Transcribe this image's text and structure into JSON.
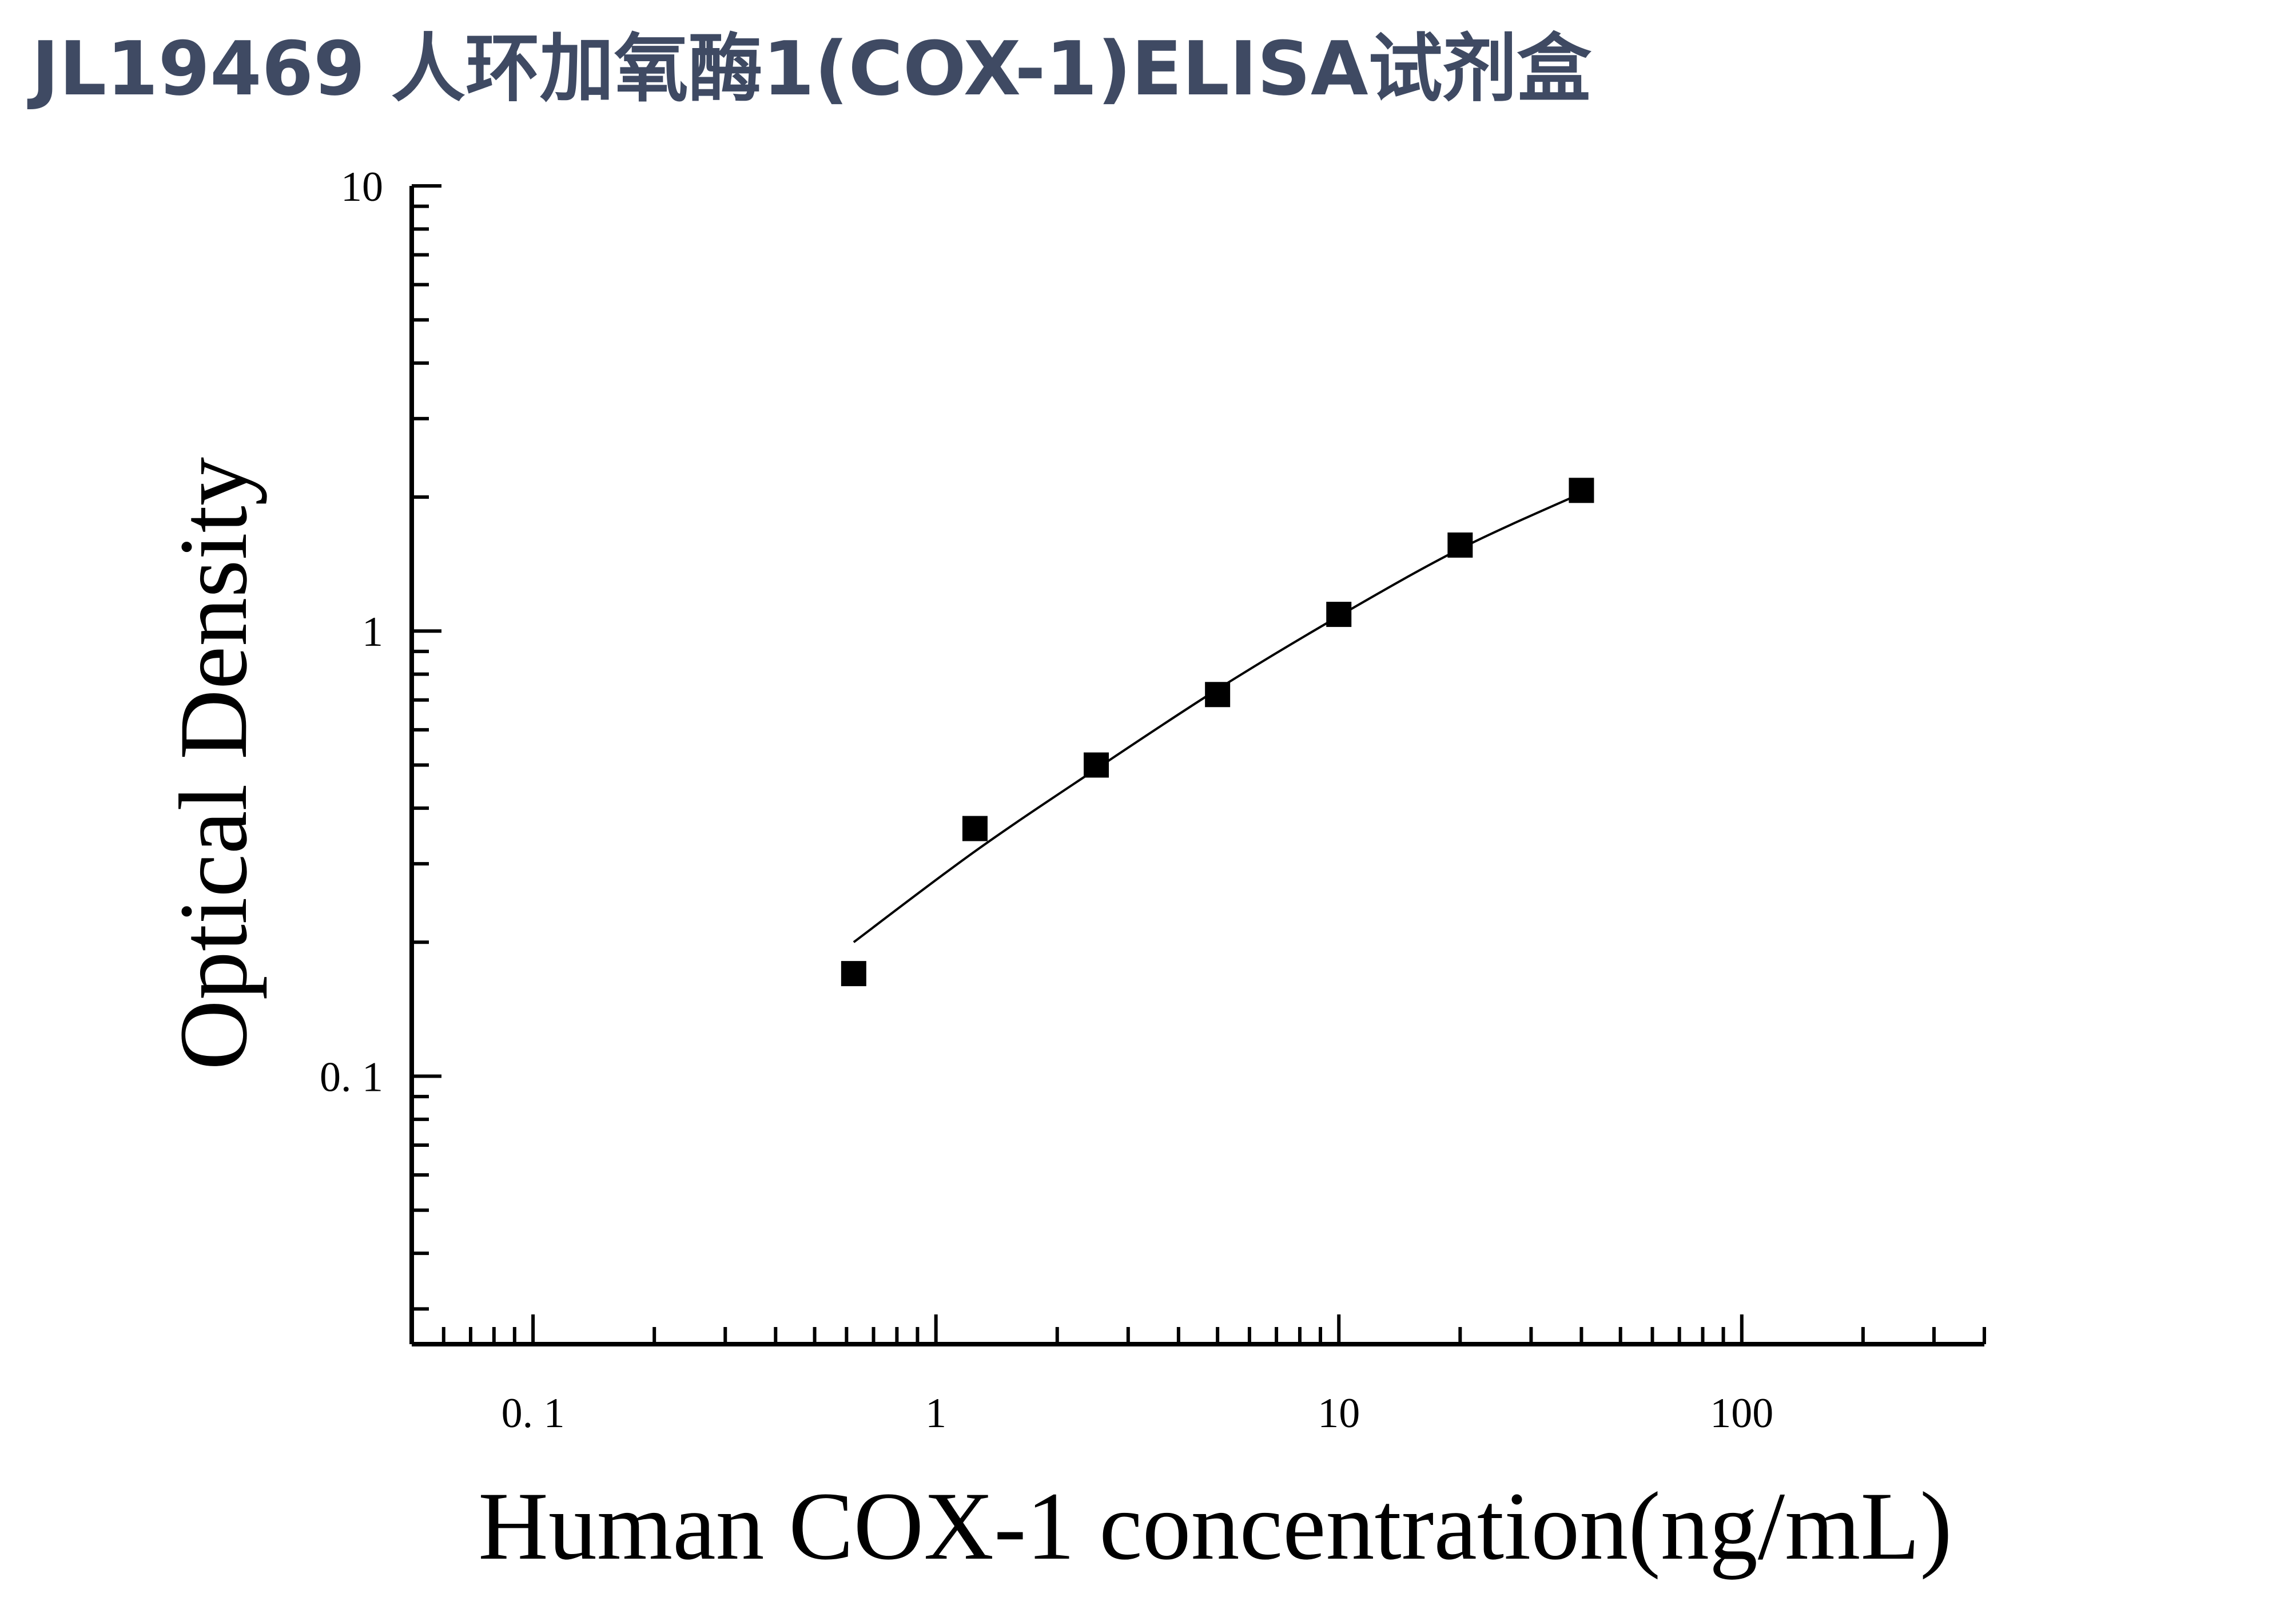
{
  "header": {
    "title": "JL19469 人环加氧酶1(COX-1)ELISA试剂盒"
  },
  "chart_data": {
    "type": "scatter",
    "title": "JL19469 人环加氧酶1(COX-1)ELISA试剂盒",
    "xlabel": "Human COX-1 concentration(ng/mL)",
    "ylabel": "Optical Density",
    "x_scale": "log",
    "y_scale": "log",
    "xlim": [
      0.05,
      400
    ],
    "ylim": [
      0.025,
      10
    ],
    "x_tick_labels": [
      "0. 1",
      "1",
      "10",
      "100"
    ],
    "x_tick_values": [
      0.1,
      1,
      10,
      100
    ],
    "y_tick_labels": [
      "0. 1",
      "1",
      "10"
    ],
    "y_tick_values": [
      0.1,
      1,
      10
    ],
    "grid": false,
    "legend": "none",
    "marker": "square",
    "marker_color": "#000000",
    "series": [
      {
        "x": [
          0.625,
          1.25,
          2.5,
          5,
          10,
          20,
          40
        ],
        "y": [
          0.17,
          0.36,
          0.5,
          0.72,
          1.09,
          1.56,
          2.07
        ]
      }
    ],
    "fit_curve": {
      "x": [
        0.625,
        1.25,
        2.5,
        5,
        10,
        20,
        40
      ],
      "y": [
        0.2,
        0.32,
        0.49,
        0.74,
        1.08,
        1.53,
        2.04
      ],
      "color": "#000000"
    }
  }
}
